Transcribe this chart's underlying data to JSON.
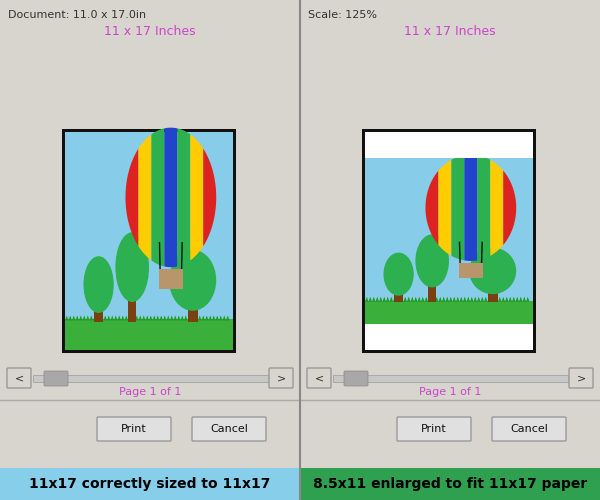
{
  "bg_color": "#d4d0c8",
  "left_header": "Document: 11.0 x 17.0in",
  "right_header": "Scale: 125%",
  "left_subtitle": "11 x 17 Inches",
  "right_subtitle": "11 x 17 Inches",
  "subtitle_color": "#cc44cc",
  "left_caption": "11x17 correctly sized to 11x17",
  "right_caption": "8.5x11 enlarged to fit 11x17 paper",
  "page_label": "Page 1 of 1",
  "page_label_color": "#cc44cc",
  "sky_color": "#87cce8",
  "grass_color": "#3aaf3a",
  "grass_dark": "#229922",
  "white_color": "#ffffff",
  "trunk_color": "#7a4010",
  "canopy_color": "#2db050",
  "basket_color": "#b8956a",
  "stripe_colors": [
    "#dd2222",
    "#ffcc00",
    "#2db050",
    "#2244cc",
    "#2db050",
    "#ffcc00",
    "#dd2222"
  ],
  "rope_color": "#111111",
  "panel_color": "#d8d5ce",
  "border_color": "#111111",
  "btn_face": "#e0e0e0",
  "btn_edge": "#999999",
  "scroll_track": "#c8c8c8",
  "scroll_thumb": "#a8a8a8",
  "caption_left_bg": "#87ceeb",
  "caption_right_bg": "#2ea050",
  "sep_color": "#aaaaaa",
  "divider_color": "#888888"
}
